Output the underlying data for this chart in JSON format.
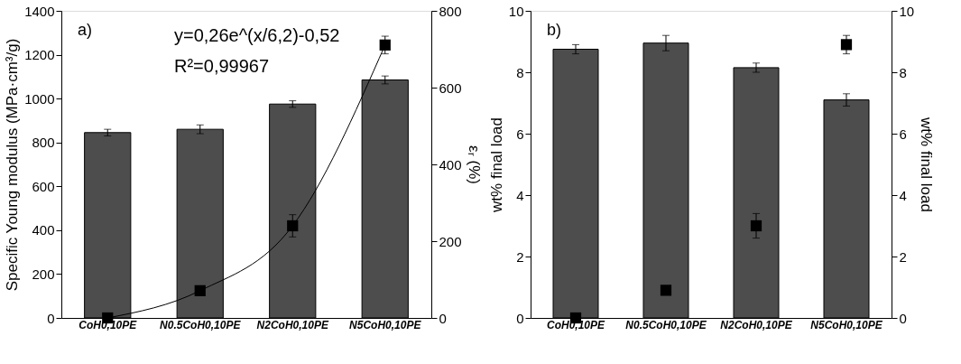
{
  "chart_data": [
    {
      "type": "bar",
      "categories": [
        "CoH0,10PE",
        "N0.5CoH0,10PE",
        "N2CoH0,10PE",
        "N5CoH0,10PE"
      ],
      "ylabel": "Specific Young modulus (MPa·cm³/g)",
      "y2label": "εᵣ (%)",
      "ylim": [
        0,
        1400
      ],
      "yticks": [
        0,
        200,
        400,
        600,
        800,
        1000,
        1200,
        1400
      ],
      "y2lim": [
        0,
        800
      ],
      "y2ticks": [
        0,
        200,
        400,
        600,
        800
      ],
      "series": [
        {
          "color": "#4d4d4d",
          "values": [
            845,
            860,
            975,
            1085
          ],
          "errors": [
            15,
            20,
            15,
            18
          ]
        },
        {
          "type": "scatter",
          "axis": "y2",
          "color": "#000000",
          "marker": "square",
          "values": [
            0,
            71,
            240,
            711
          ],
          "errors": [
            null,
            8,
            29,
            23
          ]
        },
        {
          "type": "line",
          "axis": "y2",
          "color": "#000000",
          "values": [
            0,
            71,
            240,
            711
          ]
        }
      ],
      "annotations": [
        "a)",
        "y=0,26e^(x/6,2)-0,52",
        "R²=0,99967"
      ],
      "grid": false
    },
    {
      "type": "bar",
      "categories": [
        "CoH0,10PE",
        "N0.5CoH0,10PE",
        "N2CoH0,10PE",
        "N5CoH0,10PE"
      ],
      "ylabel": "wt% final load",
      "y2label": "wt% final load",
      "ylim": [
        0,
        10
      ],
      "yticks": [
        0,
        2,
        4,
        6,
        8,
        10
      ],
      "y2lim": [
        0,
        10
      ],
      "y2ticks": [
        0,
        2,
        4,
        6,
        8,
        10
      ],
      "series": [
        {
          "color": "#4d4d4d",
          "values": [
            8.75,
            8.95,
            8.15,
            7.1
          ],
          "errors": [
            0.15,
            0.25,
            0.15,
            0.2
          ]
        },
        {
          "type": "scatter",
          "color": "#000000",
          "marker": "square",
          "values": [
            0,
            0.9,
            3.0,
            8.9
          ],
          "errors": [
            null,
            null,
            0.4,
            0.3
          ]
        }
      ],
      "annotations": [
        "b)"
      ],
      "grid": false
    }
  ]
}
